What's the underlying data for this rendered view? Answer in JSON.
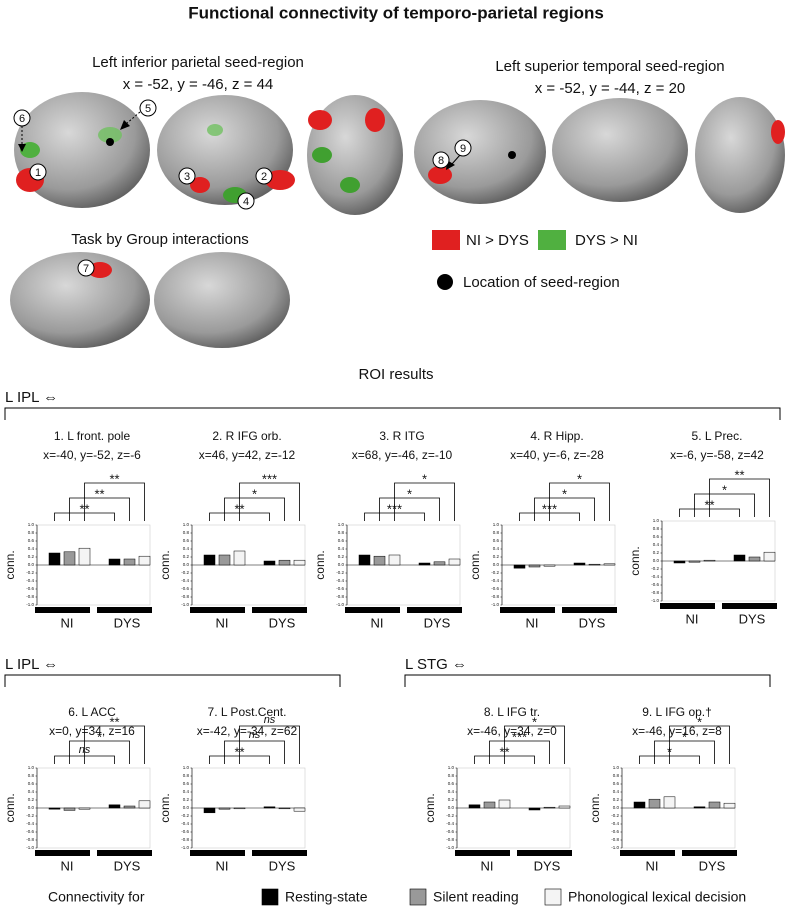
{
  "figure": {
    "title": "Functional connectivity of temporo-parietal regions",
    "seed1_title": "Left inferior parietal seed-region",
    "seed1_coords": "x = -52, y = -46, z = 44",
    "seed2_title": "Left superior temporal seed-region",
    "seed2_coords": "x = -52, y = -44, z = 20",
    "interaction_title": "Task by Group interactions",
    "legend": {
      "red": "NI > DYS",
      "green": "DYS > NI",
      "dot": "Location of seed-region"
    },
    "roi_title": "ROI results",
    "groups": [
      "L IPL ⇔",
      "L IPL ⇔",
      "L STG ⇔"
    ],
    "markers": [
      "1",
      "2",
      "3",
      "4",
      "5",
      "6",
      "7",
      "8",
      "9"
    ],
    "legend_title": "Connectivity for"
  },
  "chart_data": [
    {
      "type": "bar",
      "title": "1. L front. pole",
      "subtitle": "x=-40, y=-52, z=-6",
      "ylabel": "conn.",
      "categories": [
        "NI",
        "DYS"
      ],
      "series": [
        {
          "name": "Resting-state",
          "color": "#000000",
          "values": [
            0.3,
            0.15
          ]
        },
        {
          "name": "Silent reading",
          "color": "#999999",
          "values": [
            0.33,
            0.15
          ]
        },
        {
          "name": "Phonological lexical decision",
          "color": "#f4f4f4",
          "values": [
            0.42,
            0.22
          ]
        }
      ],
      "significance": [
        "**",
        "**",
        "**"
      ],
      "ylim": [
        -1,
        1
      ],
      "yticks": [
        {
          "value": 1,
          "label": "1.0"
        },
        0.8,
        0.6,
        0.4,
        0.2,
        {
          "value": 0,
          "label": "0.0"
        },
        -0.2,
        -0.4,
        -0.6,
        -0.8,
        {
          "value": -1,
          "label": "-1.0"
        }
      ]
    },
    {
      "type": "bar",
      "title": "2. R IFG orb.",
      "subtitle": "x=46, y=42, z=-12",
      "ylabel": "conn.",
      "categories": [
        "NI",
        "DYS"
      ],
      "series": [
        {
          "name": "Resting-state",
          "color": "#000000",
          "values": [
            0.25,
            0.1
          ]
        },
        {
          "name": "Silent reading",
          "color": "#999999",
          "values": [
            0.25,
            0.12
          ]
        },
        {
          "name": "Phonological lexical decision",
          "color": "#f4f4f4",
          "values": [
            0.35,
            0.12
          ]
        }
      ],
      "significance": [
        "**",
        "*",
        "***"
      ],
      "ylim": [
        -1,
        1
      ],
      "yticks": [
        {
          "value": 1,
          "label": "1.0"
        },
        0.8,
        0.6,
        0.4,
        0.2,
        {
          "value": 0,
          "label": "0.0"
        },
        -0.2,
        -0.4,
        -0.6,
        -0.8,
        {
          "value": -1,
          "label": "-1.0"
        }
      ]
    },
    {
      "type": "bar",
      "title": "3. R ITG",
      "subtitle": "x=68, y=-46, z=-10",
      "ylabel": "conn.",
      "categories": [
        "NI",
        "DYS"
      ],
      "series": [
        {
          "name": "Resting-state",
          "color": "#000000",
          "values": [
            0.25,
            0.05
          ]
        },
        {
          "name": "Silent reading",
          "color": "#999999",
          "values": [
            0.22,
            0.08
          ]
        },
        {
          "name": "Phonological lexical decision",
          "color": "#f4f4f4",
          "values": [
            0.25,
            0.15
          ]
        }
      ],
      "significance": [
        "***",
        "*",
        "*"
      ],
      "ylim": [
        -1,
        1
      ],
      "yticks": [
        {
          "value": 1,
          "label": "1.0"
        },
        0.8,
        0.6,
        0.4,
        0.2,
        {
          "value": 0,
          "label": "0.0"
        },
        -0.2,
        -0.4,
        -0.6,
        -0.8,
        {
          "value": -1,
          "label": "-1.0"
        }
      ]
    },
    {
      "type": "bar",
      "title": "4. R Hipp.",
      "subtitle": "x=40, y=-6, z=-28",
      "ylabel": "conn.",
      "categories": [
        "NI",
        "DYS"
      ],
      "series": [
        {
          "name": "Resting-state",
          "color": "#000000",
          "values": [
            -0.08,
            0.05
          ]
        },
        {
          "name": "Silent reading",
          "color": "#999999",
          "values": [
            -0.05,
            0.02
          ]
        },
        {
          "name": "Phonological lexical decision",
          "color": "#f4f4f4",
          "values": [
            -0.03,
            0.03
          ]
        }
      ],
      "significance": [
        "***",
        "*",
        "*"
      ],
      "ylim": [
        -1,
        1
      ],
      "yticks": [
        {
          "value": 1,
          "label": "1.0"
        },
        0.8,
        0.6,
        0.4,
        0.2,
        {
          "value": 0,
          "label": "0.0"
        },
        -0.2,
        -0.4,
        -0.6,
        -0.8,
        {
          "value": -1,
          "label": "-1.0"
        }
      ]
    },
    {
      "type": "bar",
      "title": "5. L Prec.",
      "subtitle": "x=-6, y=-58, z=42",
      "ylabel": "conn.",
      "categories": [
        "NI",
        "DYS"
      ],
      "series": [
        {
          "name": "Resting-state",
          "color": "#000000",
          "values": [
            -0.05,
            0.15
          ]
        },
        {
          "name": "Silent reading",
          "color": "#999999",
          "values": [
            -0.03,
            0.1
          ]
        },
        {
          "name": "Phonological lexical decision",
          "color": "#f4f4f4",
          "values": [
            0.02,
            0.22
          ]
        }
      ],
      "significance": [
        "**",
        "*",
        "**"
      ],
      "ylim": [
        -1,
        1
      ],
      "yticks": [
        {
          "value": 1,
          "label": "1.0"
        },
        0.8,
        0.6,
        0.4,
        0.2,
        {
          "value": 0,
          "label": "0.0"
        },
        -0.2,
        -0.4,
        -0.6,
        -0.8,
        {
          "value": -1,
          "label": "-1.0"
        }
      ]
    },
    {
      "type": "bar",
      "title": "6. L ACC",
      "subtitle": "x=0, y=34, z=16",
      "ylabel": "conn.",
      "categories": [
        "NI",
        "DYS"
      ],
      "series": [
        {
          "name": "Resting-state",
          "color": "#000000",
          "values": [
            -0.03,
            0.08
          ]
        },
        {
          "name": "Silent reading",
          "color": "#999999",
          "values": [
            -0.06,
            0.05
          ]
        },
        {
          "name": "Phonological lexical decision",
          "color": "#f4f4f4",
          "values": [
            -0.03,
            0.18
          ]
        }
      ],
      "significance": [
        "ns",
        "*",
        "**"
      ],
      "ylim": [
        -1,
        1
      ],
      "yticks": [
        {
          "value": 1,
          "label": "1.0"
        },
        0.8,
        0.6,
        0.4,
        0.2,
        {
          "value": 0,
          "label": "0.0"
        },
        -0.2,
        -0.4,
        -0.6,
        -0.8,
        {
          "value": -1,
          "label": "-1.0"
        }
      ]
    },
    {
      "type": "bar",
      "title": "7. L Post.Cent.",
      "subtitle": "x=-42, y=-34, z=62",
      "ylabel": "conn.",
      "categories": [
        "NI",
        "DYS"
      ],
      "series": [
        {
          "name": "Resting-state",
          "color": "#000000",
          "values": [
            -0.12,
            0.03
          ]
        },
        {
          "name": "Silent reading",
          "color": "#999999",
          "values": [
            -0.03,
            -0.02
          ]
        },
        {
          "name": "Phonological lexical decision",
          "color": "#f4f4f4",
          "values": [
            -0.02,
            -0.08
          ]
        }
      ],
      "significance": [
        "**",
        "ns",
        "ns"
      ],
      "ylim": [
        -1,
        1
      ],
      "yticks": [
        {
          "value": 1,
          "label": "1.0"
        },
        0.8,
        0.6,
        0.4,
        0.2,
        {
          "value": 0,
          "label": "0.0"
        },
        -0.2,
        -0.4,
        -0.6,
        -0.8,
        {
          "value": -1,
          "label": "-1.0"
        }
      ]
    },
    {
      "type": "bar",
      "title": "8. L IFG tr.",
      "subtitle": "x=-46, y=34, z=0",
      "ylabel": "conn.",
      "categories": [
        "NI",
        "DYS"
      ],
      "series": [
        {
          "name": "Resting-state",
          "color": "#000000",
          "values": [
            0.08,
            -0.05
          ]
        },
        {
          "name": "Silent reading",
          "color": "#999999",
          "values": [
            0.15,
            0.02
          ]
        },
        {
          "name": "Phonological lexical decision",
          "color": "#f4f4f4",
          "values": [
            0.2,
            0.05
          ]
        }
      ],
      "significance": [
        "**",
        "***",
        "*"
      ],
      "ylim": [
        -1,
        1
      ],
      "yticks": [
        {
          "value": 1,
          "label": "1.0"
        },
        0.8,
        0.6,
        0.4,
        0.2,
        {
          "value": 0,
          "label": "0.0"
        },
        -0.2,
        -0.4,
        -0.6,
        -0.8,
        {
          "value": -1,
          "label": "-1.0"
        }
      ]
    },
    {
      "type": "bar",
      "title": "9. L IFG op.†",
      "subtitle": "x=-46, y=16, z=8",
      "ylabel": "conn.",
      "categories": [
        "NI",
        "DYS"
      ],
      "series": [
        {
          "name": "Resting-state",
          "color": "#000000",
          "values": [
            0.15,
            0.03
          ]
        },
        {
          "name": "Silent reading",
          "color": "#999999",
          "values": [
            0.22,
            0.15
          ]
        },
        {
          "name": "Phonological lexical decision",
          "color": "#f4f4f4",
          "values": [
            0.28,
            0.12
          ]
        }
      ],
      "significance": [
        "*",
        "*",
        "*"
      ],
      "ylim": [
        -1,
        1
      ],
      "yticks": [
        {
          "value": 1,
          "label": "1.0"
        },
        0.8,
        0.6,
        0.4,
        0.2,
        {
          "value": 0,
          "label": "0.0"
        },
        -0.2,
        -0.4,
        -0.6,
        -0.8,
        {
          "value": -1,
          "label": "-1.0"
        }
      ]
    }
  ]
}
